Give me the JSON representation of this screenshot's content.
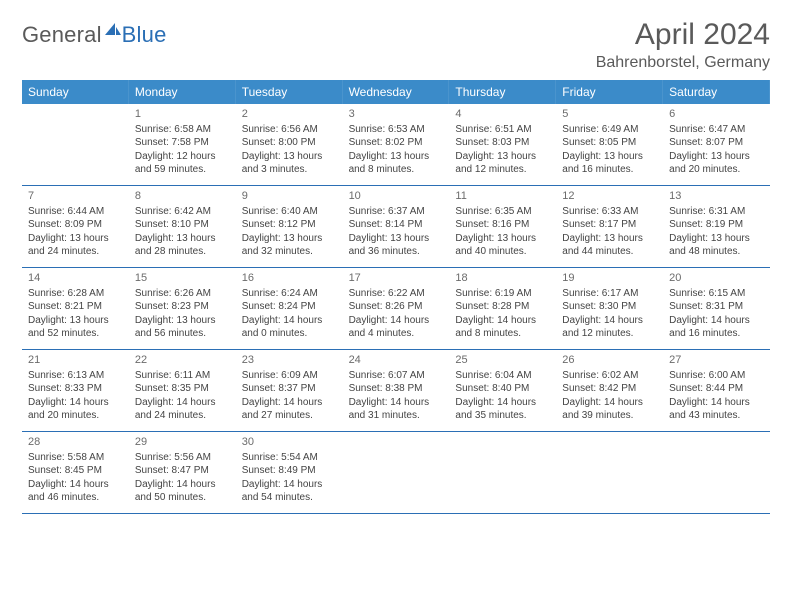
{
  "header": {
    "logo_general": "General",
    "logo_blue": "Blue",
    "month_title": "April 2024",
    "location": "Bahrenborstel, Germany"
  },
  "colors": {
    "header_bg": "#3b8bc9",
    "header_fg": "#ffffff",
    "rule": "#2b6fb5",
    "text": "#444444",
    "title": "#5a5a5a",
    "brand_blue": "#2b6fb5"
  },
  "weekdays": [
    "Sunday",
    "Monday",
    "Tuesday",
    "Wednesday",
    "Thursday",
    "Friday",
    "Saturday"
  ],
  "weeks": [
    [
      {
        "num": "",
        "lines": []
      },
      {
        "num": "1",
        "lines": [
          "Sunrise: 6:58 AM",
          "Sunset: 7:58 PM",
          "Daylight: 12 hours",
          "and 59 minutes."
        ]
      },
      {
        "num": "2",
        "lines": [
          "Sunrise: 6:56 AM",
          "Sunset: 8:00 PM",
          "Daylight: 13 hours",
          "and 3 minutes."
        ]
      },
      {
        "num": "3",
        "lines": [
          "Sunrise: 6:53 AM",
          "Sunset: 8:02 PM",
          "Daylight: 13 hours",
          "and 8 minutes."
        ]
      },
      {
        "num": "4",
        "lines": [
          "Sunrise: 6:51 AM",
          "Sunset: 8:03 PM",
          "Daylight: 13 hours",
          "and 12 minutes."
        ]
      },
      {
        "num": "5",
        "lines": [
          "Sunrise: 6:49 AM",
          "Sunset: 8:05 PM",
          "Daylight: 13 hours",
          "and 16 minutes."
        ]
      },
      {
        "num": "6",
        "lines": [
          "Sunrise: 6:47 AM",
          "Sunset: 8:07 PM",
          "Daylight: 13 hours",
          "and 20 minutes."
        ]
      }
    ],
    [
      {
        "num": "7",
        "lines": [
          "Sunrise: 6:44 AM",
          "Sunset: 8:09 PM",
          "Daylight: 13 hours",
          "and 24 minutes."
        ]
      },
      {
        "num": "8",
        "lines": [
          "Sunrise: 6:42 AM",
          "Sunset: 8:10 PM",
          "Daylight: 13 hours",
          "and 28 minutes."
        ]
      },
      {
        "num": "9",
        "lines": [
          "Sunrise: 6:40 AM",
          "Sunset: 8:12 PM",
          "Daylight: 13 hours",
          "and 32 minutes."
        ]
      },
      {
        "num": "10",
        "lines": [
          "Sunrise: 6:37 AM",
          "Sunset: 8:14 PM",
          "Daylight: 13 hours",
          "and 36 minutes."
        ]
      },
      {
        "num": "11",
        "lines": [
          "Sunrise: 6:35 AM",
          "Sunset: 8:16 PM",
          "Daylight: 13 hours",
          "and 40 minutes."
        ]
      },
      {
        "num": "12",
        "lines": [
          "Sunrise: 6:33 AM",
          "Sunset: 8:17 PM",
          "Daylight: 13 hours",
          "and 44 minutes."
        ]
      },
      {
        "num": "13",
        "lines": [
          "Sunrise: 6:31 AM",
          "Sunset: 8:19 PM",
          "Daylight: 13 hours",
          "and 48 minutes."
        ]
      }
    ],
    [
      {
        "num": "14",
        "lines": [
          "Sunrise: 6:28 AM",
          "Sunset: 8:21 PM",
          "Daylight: 13 hours",
          "and 52 minutes."
        ]
      },
      {
        "num": "15",
        "lines": [
          "Sunrise: 6:26 AM",
          "Sunset: 8:23 PM",
          "Daylight: 13 hours",
          "and 56 minutes."
        ]
      },
      {
        "num": "16",
        "lines": [
          "Sunrise: 6:24 AM",
          "Sunset: 8:24 PM",
          "Daylight: 14 hours",
          "and 0 minutes."
        ]
      },
      {
        "num": "17",
        "lines": [
          "Sunrise: 6:22 AM",
          "Sunset: 8:26 PM",
          "Daylight: 14 hours",
          "and 4 minutes."
        ]
      },
      {
        "num": "18",
        "lines": [
          "Sunrise: 6:19 AM",
          "Sunset: 8:28 PM",
          "Daylight: 14 hours",
          "and 8 minutes."
        ]
      },
      {
        "num": "19",
        "lines": [
          "Sunrise: 6:17 AM",
          "Sunset: 8:30 PM",
          "Daylight: 14 hours",
          "and 12 minutes."
        ]
      },
      {
        "num": "20",
        "lines": [
          "Sunrise: 6:15 AM",
          "Sunset: 8:31 PM",
          "Daylight: 14 hours",
          "and 16 minutes."
        ]
      }
    ],
    [
      {
        "num": "21",
        "lines": [
          "Sunrise: 6:13 AM",
          "Sunset: 8:33 PM",
          "Daylight: 14 hours",
          "and 20 minutes."
        ]
      },
      {
        "num": "22",
        "lines": [
          "Sunrise: 6:11 AM",
          "Sunset: 8:35 PM",
          "Daylight: 14 hours",
          "and 24 minutes."
        ]
      },
      {
        "num": "23",
        "lines": [
          "Sunrise: 6:09 AM",
          "Sunset: 8:37 PM",
          "Daylight: 14 hours",
          "and 27 minutes."
        ]
      },
      {
        "num": "24",
        "lines": [
          "Sunrise: 6:07 AM",
          "Sunset: 8:38 PM",
          "Daylight: 14 hours",
          "and 31 minutes."
        ]
      },
      {
        "num": "25",
        "lines": [
          "Sunrise: 6:04 AM",
          "Sunset: 8:40 PM",
          "Daylight: 14 hours",
          "and 35 minutes."
        ]
      },
      {
        "num": "26",
        "lines": [
          "Sunrise: 6:02 AM",
          "Sunset: 8:42 PM",
          "Daylight: 14 hours",
          "and 39 minutes."
        ]
      },
      {
        "num": "27",
        "lines": [
          "Sunrise: 6:00 AM",
          "Sunset: 8:44 PM",
          "Daylight: 14 hours",
          "and 43 minutes."
        ]
      }
    ],
    [
      {
        "num": "28",
        "lines": [
          "Sunrise: 5:58 AM",
          "Sunset: 8:45 PM",
          "Daylight: 14 hours",
          "and 46 minutes."
        ]
      },
      {
        "num": "29",
        "lines": [
          "Sunrise: 5:56 AM",
          "Sunset: 8:47 PM",
          "Daylight: 14 hours",
          "and 50 minutes."
        ]
      },
      {
        "num": "30",
        "lines": [
          "Sunrise: 5:54 AM",
          "Sunset: 8:49 PM",
          "Daylight: 14 hours",
          "and 54 minutes."
        ]
      },
      {
        "num": "",
        "lines": []
      },
      {
        "num": "",
        "lines": []
      },
      {
        "num": "",
        "lines": []
      },
      {
        "num": "",
        "lines": []
      }
    ]
  ]
}
